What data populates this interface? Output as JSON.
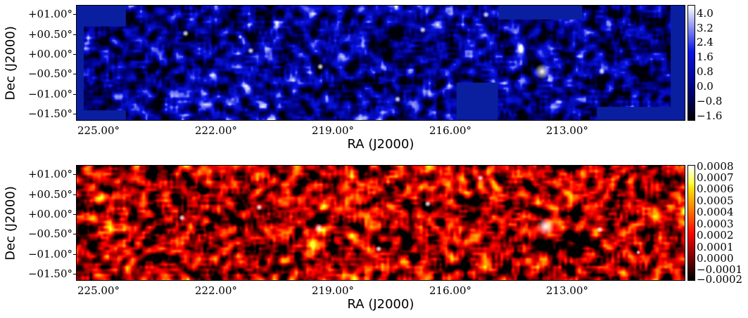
{
  "panels": [
    {
      "colormap": "blue",
      "ylabel": "Dec (J2000)",
      "xlabel": "RA (J2000)",
      "yticks": [
        "+01.00°",
        "+00.50°",
        "+00.00°",
        "−00.50°",
        "−01.00°",
        "−01.50°"
      ],
      "xticks": [
        "225.00°",
        "222.00°",
        "219.00°",
        "216.00°",
        "213.00°"
      ],
      "colorbar_ticks": [
        "4.0",
        "3.2",
        "2.4",
        "1.6",
        "0.8",
        "0.0",
        "−0.8",
        "−1.6"
      ],
      "colorbar_range": [
        -2.0,
        4.4
      ],
      "colors": {
        "low": "#000000",
        "mid": "#1a1acc",
        "high": "#ffffff",
        "background": "#0a1fa0"
      }
    },
    {
      "colormap": "hot",
      "ylabel": "Dec (J2000)",
      "xlabel": "RA (J2000)",
      "yticks": [
        "+01.00°",
        "+00.50°",
        "+00.00°",
        "−00.50°",
        "−01.00°",
        "−01.50°"
      ],
      "xticks": [
        "225.00°",
        "222.00°",
        "219.00°",
        "216.00°",
        "213.00°"
      ],
      "colorbar_ticks": [
        "0.0008",
        "0.0007",
        "0.0006",
        "0.0005",
        "0.0004",
        "0.0003",
        "0.0002",
        "0.0001",
        "0.0000",
        "−0.0001",
        "−0.0002"
      ],
      "colorbar_range": [
        -0.0002,
        0.0008
      ],
      "colors": {
        "low": "#000000",
        "mid": "#cc2200",
        "high": "#ffffff"
      }
    }
  ]
}
